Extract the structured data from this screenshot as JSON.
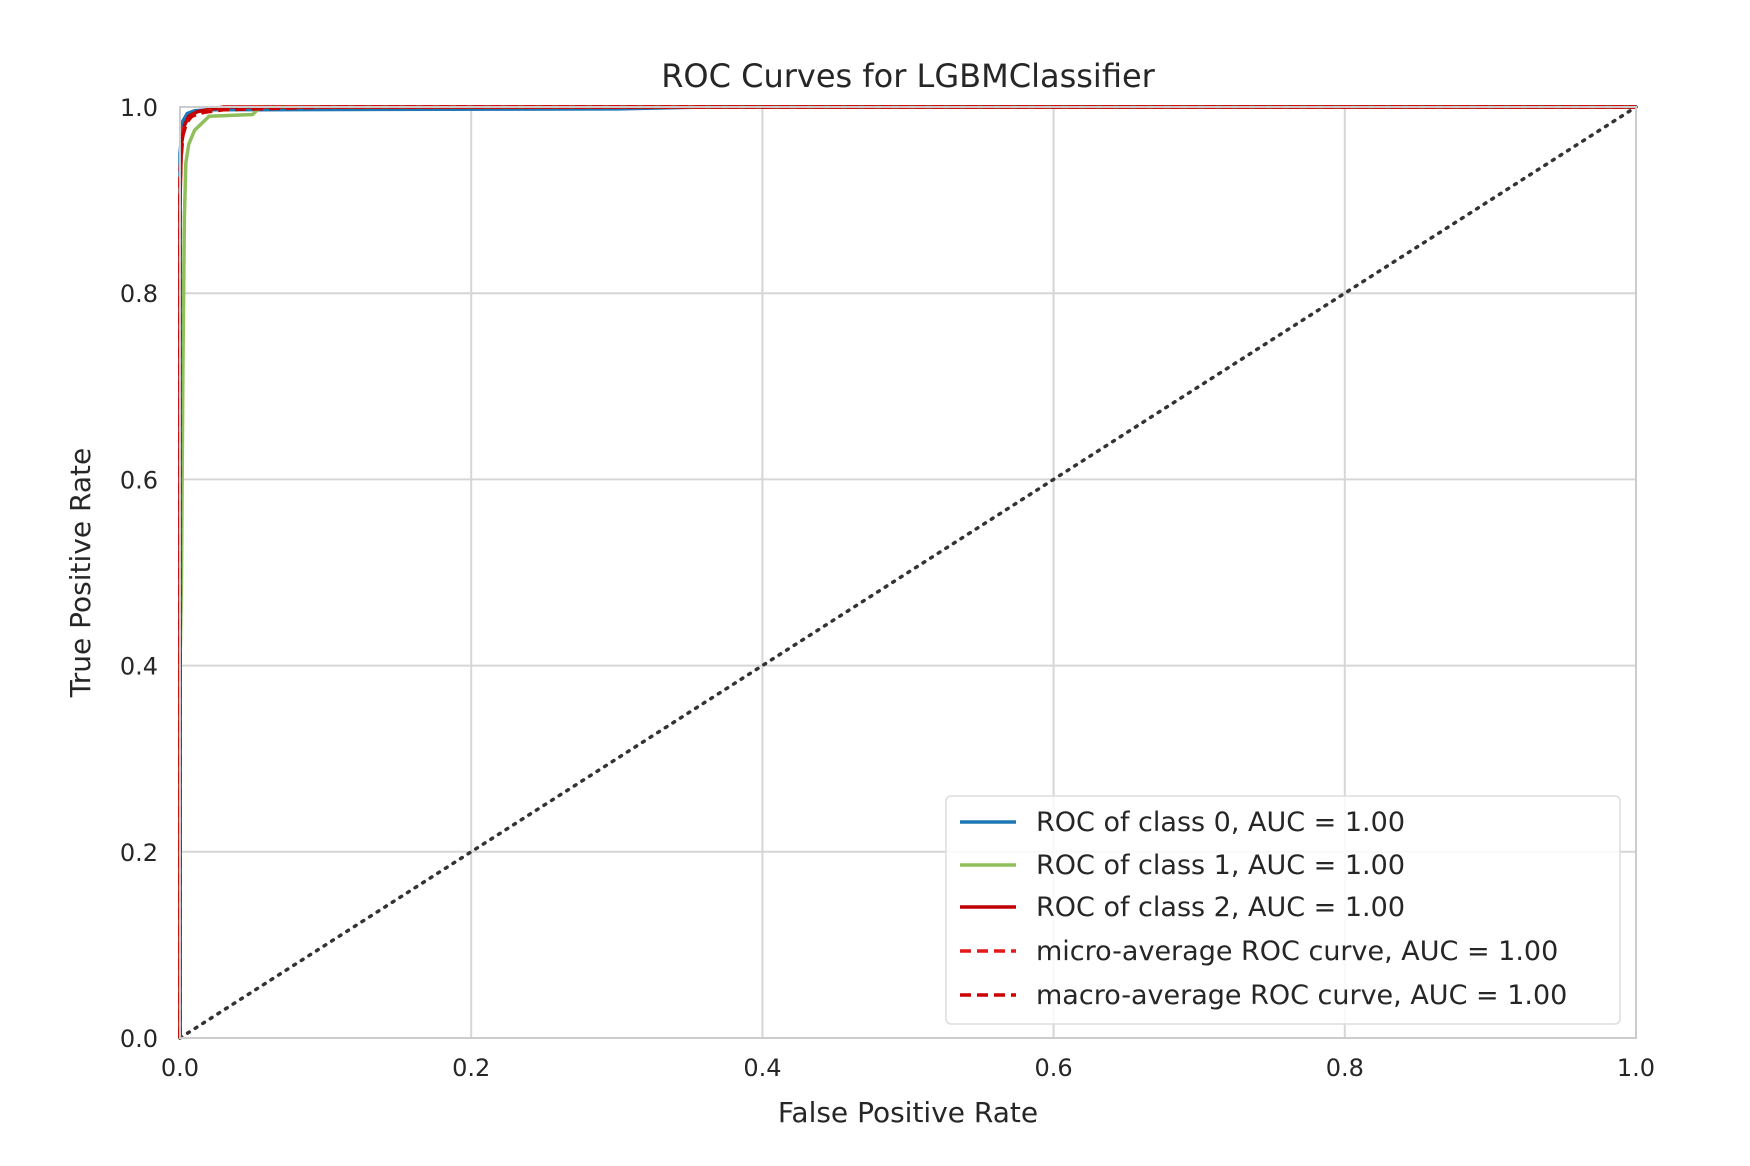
{
  "chart_data": {
    "type": "line",
    "title": "ROC Curves for LGBMClassifier",
    "xlabel": "False Positive Rate",
    "ylabel": "True Positive Rate",
    "xlim": [
      0.0,
      1.0
    ],
    "ylim": [
      0.0,
      1.0
    ],
    "x_ticks": [
      "0.0",
      "0.2",
      "0.4",
      "0.6",
      "0.8",
      "1.0"
    ],
    "y_ticks": [
      "0.0",
      "0.2",
      "0.4",
      "0.6",
      "0.8",
      "1.0"
    ],
    "grid": true,
    "legend_position": "bottom-right",
    "series": [
      {
        "name": "ROC of class 0, AUC = 1.00",
        "color": "#1f77b4",
        "style": "solid",
        "x": [
          0.0,
          0.0,
          0.002,
          0.005,
          0.01,
          0.02,
          0.3,
          0.36,
          1.0
        ],
        "y": [
          0.0,
          0.95,
          0.985,
          0.993,
          0.996,
          0.997,
          0.998,
          1.0,
          1.0
        ]
      },
      {
        "name": "ROC of class 1, AUC = 1.00",
        "color": "#8fbf5a",
        "style": "solid",
        "x": [
          0.0,
          0.0,
          0.001,
          0.002,
          0.003,
          0.004,
          0.006,
          0.01,
          0.02,
          0.05,
          0.055,
          1.0
        ],
        "y": [
          0.0,
          0.4,
          0.49,
          0.72,
          0.88,
          0.94,
          0.96,
          0.975,
          0.99,
          0.992,
          1.0,
          1.0
        ]
      },
      {
        "name": "ROC of class 2, AUC = 1.00",
        "color": "#c00000",
        "style": "solid",
        "x": [
          0.0,
          0.0,
          0.001,
          0.003,
          0.006,
          0.012,
          0.03,
          1.0
        ],
        "y": [
          0.0,
          0.9,
          0.96,
          0.98,
          0.99,
          0.995,
          1.0,
          1.0
        ]
      },
      {
        "name": "micro-average ROC curve, AUC = 1.00",
        "color": "#e31a1c",
        "style": "dashed",
        "x": [
          0.0,
          0.0,
          0.001,
          0.003,
          0.008,
          0.02,
          0.05,
          1.0
        ],
        "y": [
          0.0,
          0.92,
          0.96,
          0.98,
          0.99,
          0.996,
          1.0,
          1.0
        ]
      },
      {
        "name": "macro-average ROC curve, AUC = 1.00",
        "color": "#cc0000",
        "style": "dashed",
        "x": [
          0.0,
          0.0,
          0.002,
          0.005,
          0.01,
          0.03,
          0.1,
          1.0
        ],
        "y": [
          0.0,
          0.93,
          0.97,
          0.985,
          0.993,
          0.997,
          1.0,
          1.0
        ]
      }
    ],
    "reference_line": {
      "x": [
        0.0,
        1.0
      ],
      "y": [
        0.0,
        1.0
      ],
      "color": "#333333",
      "style": "dotted"
    }
  }
}
